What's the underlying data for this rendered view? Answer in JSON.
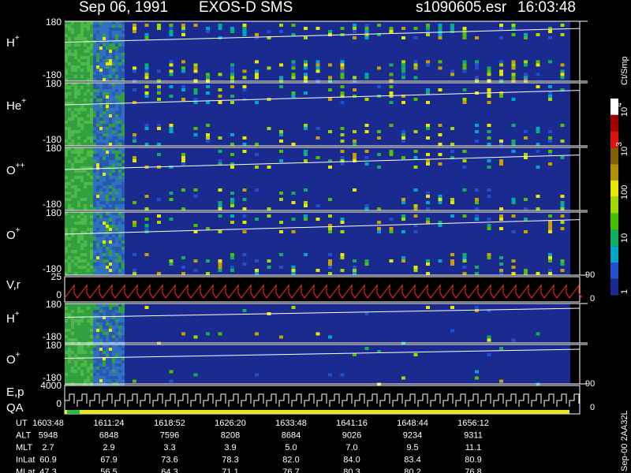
{
  "header": {
    "date": "Sep 06, 1991",
    "instrument": "EXOS-D SMS",
    "file": "s1090605.esr",
    "time": "16:03:48"
  },
  "panels": [
    {
      "label": {
        "base": "H",
        "sup": "+"
      },
      "top": "180",
      "bottom": "-180"
    },
    {
      "label": {
        "base": "He",
        "sup": "+"
      },
      "top": "180",
      "bottom": "-180"
    },
    {
      "label": {
        "base": "O",
        "sup": "++"
      },
      "top": "180",
      "bottom": "-180"
    },
    {
      "label": {
        "base": "O",
        "sup": "+"
      },
      "top": "180",
      "bottom": "-180"
    }
  ],
  "vr": {
    "label": "V,r",
    "top": "25",
    "mid": "0",
    "right_top": "90",
    "right_bottom": "0"
  },
  "small_panels": [
    {
      "label": {
        "base": "H",
        "sup": "+"
      },
      "top": "180",
      "bottom": "-180"
    },
    {
      "label": {
        "base": "O",
        "sup": "+"
      },
      "top": "180",
      "bottom": "-180",
      "right_bottom": "90"
    }
  ],
  "ep": {
    "label": "E,p",
    "label2": "QA",
    "top": "4000",
    "mid": "0",
    "right_bottom": "0"
  },
  "colorbar": {
    "unit": "Ct/Smp",
    "ticks": [
      {
        "base": "10",
        "sup": "4"
      },
      {
        "base": "10",
        "sup": "3"
      },
      {
        "base": "100"
      },
      {
        "base": "10"
      },
      {
        "base": "1"
      }
    ]
  },
  "footer_code": "Sep-00  2AA32L",
  "table": {
    "rows": [
      {
        "label": "UT",
        "values": [
          "1603:48",
          "1611:24",
          "1618:52",
          "1626:20",
          "1633:48",
          "1641:16",
          "1648:44",
          "1656:12"
        ]
      },
      {
        "label": "ALT",
        "values": [
          "5948",
          "6848",
          "7596",
          "8208",
          "8684",
          "9026",
          "9234",
          "9311"
        ]
      },
      {
        "label": "MLT",
        "values": [
          "2.7",
          "2.9",
          "3.3",
          "3.9",
          "5.0",
          "7.0",
          "9.5",
          "11.1"
        ]
      },
      {
        "label": "InLat",
        "values": [
          "60.9",
          "67.9",
          "73.6",
          "78.3",
          "82.0",
          "84.0",
          "83.4",
          "80.9"
        ]
      },
      {
        "label": "MLat",
        "values": [
          "47.3",
          "56.5",
          "64.3",
          "71.1",
          "76.7",
          "80.3",
          "80.2",
          "76.8"
        ]
      }
    ]
  }
}
